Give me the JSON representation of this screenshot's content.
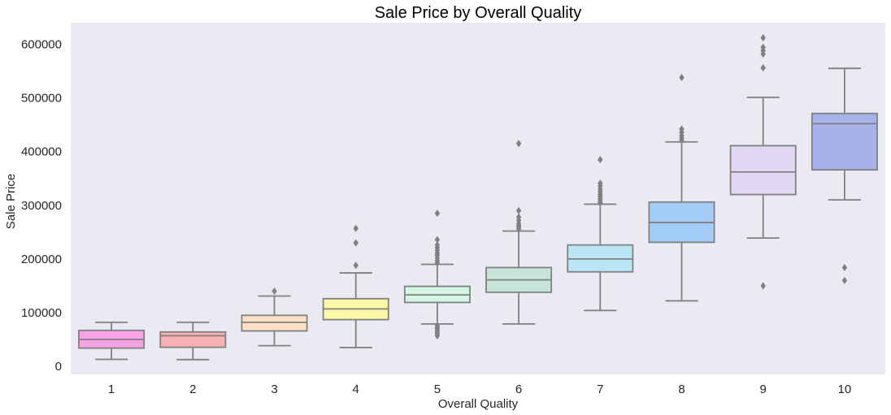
{
  "chart_data": {
    "type": "box",
    "title": "Sale Price by Overall Quality",
    "xlabel": "Overall Quality",
    "ylabel": "Sale Price",
    "ylim": [
      -15000,
      640000
    ],
    "yticks": [
      0,
      100000,
      200000,
      300000,
      400000,
      500000,
      600000
    ],
    "grid": false,
    "colors": {
      "plot_bg": "#eaeaf2",
      "line": "#808080"
    },
    "boxes": [
      {
        "category": "1",
        "color": "#f7a3e6",
        "whisker_low": 13000,
        "q1": 34000,
        "median": 50000,
        "q3": 67000,
        "whisker_high": 82000,
        "outliers": []
      },
      {
        "category": "2",
        "color": "#f7b3b3",
        "whisker_low": 12500,
        "q1": 35500,
        "median": 57000,
        "q3": 64000,
        "whisker_high": 82000,
        "outliers": []
      },
      {
        "category": "3",
        "color": "#fde0c6",
        "whisker_low": 38500,
        "q1": 66000,
        "median": 82000,
        "q3": 95000,
        "whisker_high": 131000,
        "outliers": [
          140000
        ]
      },
      {
        "category": "4",
        "color": "#fbf8a5",
        "whisker_low": 35000,
        "q1": 87000,
        "median": 107000,
        "q3": 126000,
        "whisker_high": 174000,
        "outliers": [
          188000,
          230000,
          257000
        ]
      },
      {
        "category": "5",
        "color": "#d3f5e1",
        "whisker_low": 79000,
        "q1": 119000,
        "median": 133000,
        "q3": 149000,
        "whisker_high": 190000,
        "outliers": [
          57000,
          60000,
          63000,
          66000,
          70000,
          73000,
          76000,
          193000,
          197000,
          202000,
          207000,
          211000,
          216000,
          221000,
          226000,
          236000,
          285000
        ]
      },
      {
        "category": "6",
        "color": "#c6e4d8",
        "whisker_low": 79000,
        "q1": 138000,
        "median": 161000,
        "q3": 184000,
        "whisker_high": 252000,
        "outliers": [
          256000,
          259000,
          262000,
          266000,
          272000,
          278000,
          290000,
          415000
        ]
      },
      {
        "category": "7",
        "color": "#b9e5f7",
        "whisker_low": 104000,
        "q1": 176000,
        "median": 200000,
        "q3": 226000,
        "whisker_high": 302000,
        "outliers": [
          305000,
          308000,
          312000,
          316000,
          320000,
          325000,
          330000,
          336000,
          341000,
          385000
        ]
      },
      {
        "category": "8",
        "color": "#a3cdf6",
        "whisker_low": 122000,
        "q1": 231000,
        "median": 268000,
        "q3": 306000,
        "whisker_high": 418000,
        "outliers": [
          421000,
          425000,
          430000,
          436000,
          442000,
          538000
        ]
      },
      {
        "category": "9",
        "color": "#e1d7f2",
        "whisker_low": 239000,
        "q1": 320000,
        "median": 362000,
        "q3": 411000,
        "whisker_high": 501000,
        "outliers": [
          150000,
          556000,
          582000,
          588000,
          594000,
          612000
        ]
      },
      {
        "category": "10",
        "color": "#a7b2ea",
        "whisker_low": 310000,
        "q1": 366000,
        "median": 452000,
        "q3": 471000,
        "whisker_high": 555000,
        "outliers": [
          160000,
          184000
        ]
      }
    ]
  }
}
